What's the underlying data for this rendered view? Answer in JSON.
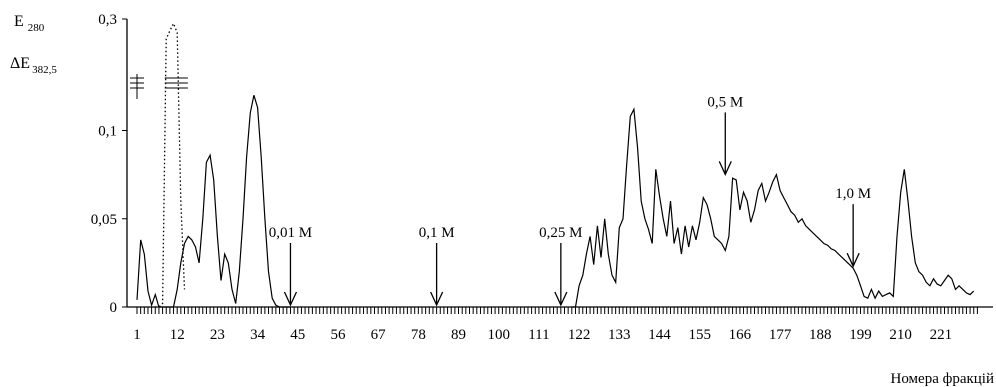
{
  "chart_data": {
    "type": "line",
    "ylabel_top": "E",
    "ylabel_top_sub": "280",
    "ylabel_bottom": "ΔE",
    "ylabel_bottom_sub": "382,5",
    "xlabel": "Номера фракцій",
    "ylim": [
      0,
      0.3
    ],
    "xlim": [
      0,
      235
    ],
    "y_axis_break": true,
    "grid": false,
    "y_ticks": [
      {
        "value": 0,
        "label": "0"
      },
      {
        "value": 0.05,
        "label": "0,05"
      },
      {
        "value": 0.1,
        "label": "0,1"
      },
      {
        "value": 0.3,
        "label": "0,3"
      }
    ],
    "x_ticks": [
      1,
      12,
      23,
      34,
      45,
      56,
      67,
      78,
      89,
      100,
      111,
      122,
      133,
      144,
      155,
      166,
      177,
      188,
      199,
      210,
      221
    ],
    "x_tick_labels": [
      "1",
      "12",
      "23",
      "34",
      "45",
      "56",
      "67",
      "78",
      "89",
      "100",
      "111",
      "122",
      "133",
      "144",
      "155",
      "166",
      "177",
      "188",
      "199",
      "210",
      "221"
    ],
    "annotations": [
      {
        "label": "0,01 M",
        "x": 43,
        "y_tip": 0
      },
      {
        "label": "0,1 M",
        "x": 83,
        "y_tip": 0
      },
      {
        "label": "0,25 M",
        "x": 117,
        "y_tip": 0
      },
      {
        "label": "0,5 M",
        "x": 162,
        "y_tip": 0.074
      },
      {
        "label": "1,0 M",
        "x": 197,
        "y_tip": 0.022
      }
    ],
    "series": [
      {
        "style": "solid",
        "x": [
          1,
          2,
          3,
          4,
          5,
          6,
          7,
          8,
          9,
          10,
          11,
          12,
          13,
          14,
          15,
          16,
          17,
          18,
          19,
          20,
          21,
          22,
          23,
          24,
          25,
          26,
          27,
          28,
          29,
          30,
          31,
          32,
          33,
          34,
          35,
          36,
          37,
          38,
          39,
          40,
          41,
          42,
          43
        ],
        "y": [
          0.004,
          0.038,
          0.03,
          0.009,
          0.001,
          0.007,
          0,
          0,
          0,
          0,
          0,
          0.01,
          0.025,
          0.036,
          0.04,
          0.038,
          0.034,
          0.025,
          0.05,
          0.082,
          0.086,
          0.072,
          0.04,
          0.015,
          0.03,
          0.025,
          0.01,
          0.002,
          0.02,
          0.05,
          0.085,
          0.11,
          0.12,
          0.113,
          0.085,
          0.05,
          0.02,
          0.005,
          0.001,
          0,
          0,
          0,
          0
        ]
      },
      {
        "style": "solid",
        "x": [
          120,
          121,
          122,
          123,
          124,
          125,
          126,
          127,
          128,
          129,
          130,
          131,
          132,
          133,
          134,
          135,
          136,
          137,
          138,
          139,
          140,
          141,
          142,
          143,
          144,
          145,
          146,
          147,
          148,
          149,
          150,
          151,
          152,
          153,
          154,
          155,
          156,
          157,
          158,
          159,
          160,
          161,
          162,
          163,
          164,
          165,
          166,
          167,
          168,
          169,
          170,
          171,
          172,
          173,
          174,
          175,
          176,
          177,
          178,
          179,
          180,
          181,
          182,
          183,
          184,
          185,
          186,
          187,
          188,
          189,
          190,
          191,
          192,
          193,
          194,
          195,
          196,
          197,
          198,
          199,
          200,
          201,
          202,
          203,
          204,
          205,
          206,
          207,
          208,
          209,
          210,
          211,
          212,
          213,
          214,
          215,
          216,
          217,
          218,
          219,
          220,
          221,
          222,
          223,
          224,
          225,
          226,
          227,
          228,
          229,
          230
        ],
        "y": [
          0,
          0,
          0.012,
          0.018,
          0.03,
          0.04,
          0.024,
          0.046,
          0.028,
          0.05,
          0.03,
          0.018,
          0.014,
          0.045,
          0.05,
          0.08,
          0.108,
          0.112,
          0.09,
          0.06,
          0.05,
          0.044,
          0.036,
          0.078,
          0.063,
          0.05,
          0.04,
          0.06,
          0.036,
          0.045,
          0.03,
          0.046,
          0.034,
          0.046,
          0.038,
          0.048,
          0.062,
          0.058,
          0.05,
          0.04,
          0.038,
          0.036,
          0.032,
          0.04,
          0.073,
          0.072,
          0.055,
          0.065,
          0.06,
          0.048,
          0.055,
          0.066,
          0.07,
          0.06,
          0.065,
          0.071,
          0.075,
          0.066,
          0.062,
          0.058,
          0.054,
          0.052,
          0.048,
          0.05,
          0.046,
          0.044,
          0.042,
          0.04,
          0.038,
          0.036,
          0.035,
          0.033,
          0.032,
          0.03,
          0.028,
          0.026,
          0.024,
          0.022,
          0.018,
          0.012,
          0.006,
          0.005,
          0.01,
          0.005,
          0.009,
          0.006,
          0.007,
          0.008,
          0.006,
          0.04,
          0.065,
          0.078,
          0.06,
          0.04,
          0.025,
          0.02,
          0.018,
          0.014,
          0.012,
          0.016,
          0.013,
          0.012,
          0.015,
          0.018,
          0.016,
          0.01,
          0.012,
          0.01,
          0.008,
          0.007,
          0.009
        ]
      },
      {
        "style": "dotted",
        "x": [
          6,
          7,
          8,
          9,
          10,
          11,
          12,
          13,
          14
        ],
        "y": [
          0,
          0,
          0.002,
          0.14,
          0.22,
          0.29,
          0.2,
          0.06,
          0.01
        ]
      }
    ]
  }
}
